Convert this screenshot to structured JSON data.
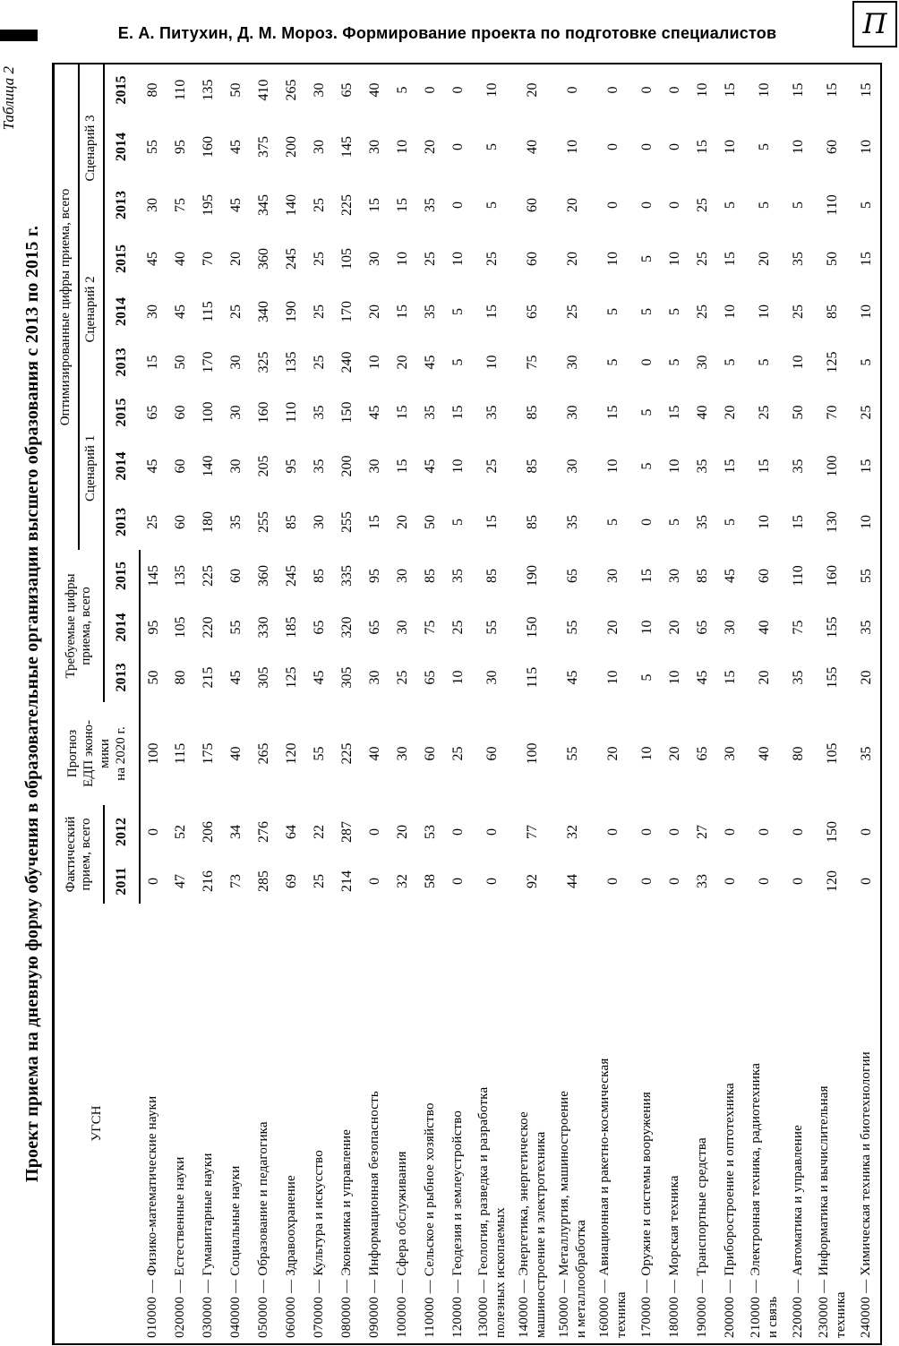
{
  "page": {
    "running_header": "Е. А. Питухин, Д. М. Мороз. Формирование проекта по подготовке специалистов",
    "logo_glyph": "П",
    "table_label": "Таблица 2",
    "table_title": "Проект приема на дневную форму обучения в образовательные организации высшего образования с 2013 по 2015 г."
  },
  "table": {
    "headers": {
      "ugsn": "УГСН",
      "fact": "Фактический прием, всего",
      "fact_years": [
        "2011",
        "2012"
      ],
      "forecast_lines": [
        "Прогноз",
        "ЕДП эконо-",
        "мики",
        "на 2020 г."
      ],
      "required": "Требуемые цифры приема, всего",
      "required_years": [
        "2013",
        "2014",
        "2015"
      ],
      "optimized": "Оптимизированные цифры приема, всего",
      "scenarios": [
        "Сценарий 1",
        "Сценарий 2",
        "Сценарий 3"
      ],
      "scenario_years": [
        "2013",
        "2014",
        "2015"
      ]
    },
    "rows": [
      {
        "label_lines": [
          "010000 — Физико-математические науки"
        ],
        "values": [
          0,
          0,
          100,
          50,
          95,
          145,
          25,
          45,
          65,
          15,
          30,
          45,
          30,
          55,
          80
        ]
      },
      {
        "label_lines": [
          "020000 — Естественные науки"
        ],
        "values": [
          47,
          52,
          115,
          80,
          105,
          135,
          60,
          60,
          60,
          50,
          45,
          40,
          75,
          95,
          110
        ]
      },
      {
        "label_lines": [
          "030000 — Гуманитарные науки"
        ],
        "values": [
          216,
          206,
          175,
          215,
          220,
          225,
          180,
          140,
          100,
          170,
          115,
          70,
          195,
          160,
          135
        ]
      },
      {
        "label_lines": [
          "040000 — Социальные науки"
        ],
        "values": [
          73,
          34,
          40,
          45,
          55,
          60,
          35,
          30,
          30,
          30,
          25,
          20,
          45,
          45,
          50
        ]
      },
      {
        "label_lines": [
          "050000 — Образование и педагогика"
        ],
        "values": [
          285,
          276,
          265,
          305,
          330,
          360,
          255,
          205,
          160,
          325,
          340,
          360,
          345,
          375,
          410
        ]
      },
      {
        "label_lines": [
          "060000 — Здравоохранение"
        ],
        "values": [
          69,
          64,
          120,
          125,
          185,
          245,
          85,
          95,
          110,
          135,
          190,
          245,
          140,
          200,
          265
        ]
      },
      {
        "label_lines": [
          "070000 — Культура и искусство"
        ],
        "values": [
          25,
          22,
          55,
          45,
          65,
          85,
          30,
          35,
          35,
          25,
          25,
          25,
          25,
          30,
          30
        ]
      },
      {
        "label_lines": [
          "080000 — Экономика и управление"
        ],
        "values": [
          214,
          287,
          225,
          305,
          320,
          335,
          255,
          200,
          150,
          240,
          170,
          105,
          225,
          145,
          65
        ]
      },
      {
        "label_lines": [
          "090000 — Информационная безопасность"
        ],
        "values": [
          0,
          0,
          40,
          30,
          65,
          95,
          15,
          30,
          45,
          10,
          20,
          30,
          15,
          30,
          40
        ]
      },
      {
        "label_lines": [
          "100000 — Сфера обслуживания"
        ],
        "values": [
          32,
          20,
          30,
          25,
          30,
          30,
          20,
          15,
          15,
          20,
          15,
          10,
          15,
          10,
          5
        ]
      },
      {
        "label_lines": [
          "110000 — Сельское и рыбное хозяйство"
        ],
        "values": [
          58,
          53,
          60,
          65,
          75,
          85,
          50,
          45,
          35,
          45,
          35,
          25,
          35,
          20,
          0
        ]
      },
      {
        "label_lines": [
          "120000 — Геодезия и землеустройство"
        ],
        "values": [
          0,
          0,
          25,
          10,
          25,
          35,
          5,
          10,
          15,
          5,
          5,
          10,
          0,
          0,
          0
        ]
      },
      {
        "label_lines": [
          "130000 — Геология, разведка и разработка",
          "полезных ископаемых"
        ],
        "values": [
          0,
          0,
          60,
          30,
          55,
          85,
          15,
          25,
          35,
          10,
          15,
          25,
          5,
          5,
          10
        ]
      },
      {
        "label_lines": [
          "140000 — Энергетика, энергетическое",
          "машиностроение и электротехника"
        ],
        "values": [
          92,
          77,
          100,
          115,
          150,
          190,
          85,
          85,
          85,
          75,
          65,
          60,
          60,
          40,
          20
        ]
      },
      {
        "label_lines": [
          "150000 — Металлургия, машиностроение",
          "и металлообработка"
        ],
        "values": [
          44,
          32,
          55,
          45,
          55,
          65,
          35,
          30,
          30,
          30,
          25,
          20,
          20,
          10,
          0
        ]
      },
      {
        "label_lines": [
          "160000 — Авиационная и ракетно-космическая",
          "техника"
        ],
        "values": [
          0,
          0,
          20,
          10,
          20,
          30,
          5,
          10,
          15,
          5,
          5,
          10,
          0,
          0,
          0
        ]
      },
      {
        "label_lines": [
          "170000 — Оружие и системы вооружения"
        ],
        "values": [
          0,
          0,
          10,
          5,
          10,
          15,
          0,
          5,
          5,
          0,
          5,
          5,
          0,
          0,
          0
        ]
      },
      {
        "label_lines": [
          "180000 — Морская техника"
        ],
        "values": [
          0,
          0,
          20,
          10,
          20,
          30,
          5,
          10,
          15,
          5,
          5,
          10,
          0,
          0,
          0
        ]
      },
      {
        "label_lines": [
          "190000 — Транспортные средства"
        ],
        "values": [
          33,
          27,
          65,
          45,
          65,
          85,
          35,
          35,
          40,
          30,
          25,
          25,
          25,
          15,
          10
        ]
      },
      {
        "label_lines": [
          "200000 — Приборостроение и оптотехника"
        ],
        "values": [
          0,
          0,
          30,
          15,
          30,
          45,
          5,
          15,
          20,
          5,
          10,
          15,
          5,
          10,
          15
        ]
      },
      {
        "label_lines": [
          "210000 — Электронная техника, радиотехника",
          "и связь"
        ],
        "values": [
          0,
          0,
          40,
          20,
          40,
          60,
          10,
          15,
          25,
          5,
          10,
          20,
          5,
          5,
          10
        ]
      },
      {
        "label_lines": [
          "220000 — Автоматика и управление"
        ],
        "values": [
          0,
          0,
          80,
          35,
          75,
          110,
          15,
          35,
          50,
          10,
          25,
          35,
          5,
          10,
          15
        ]
      },
      {
        "label_lines": [
          "230000 — Информатика и вычислительная",
          "техника"
        ],
        "values": [
          120,
          150,
          105,
          155,
          155,
          160,
          130,
          100,
          70,
          125,
          85,
          50,
          110,
          60,
          15
        ]
      },
      {
        "label_lines": [
          "240000 — Химическая техника и биотехнологии"
        ],
        "values": [
          0,
          0,
          35,
          20,
          35,
          55,
          10,
          15,
          25,
          5,
          10,
          15,
          5,
          10,
          15
        ]
      }
    ]
  }
}
